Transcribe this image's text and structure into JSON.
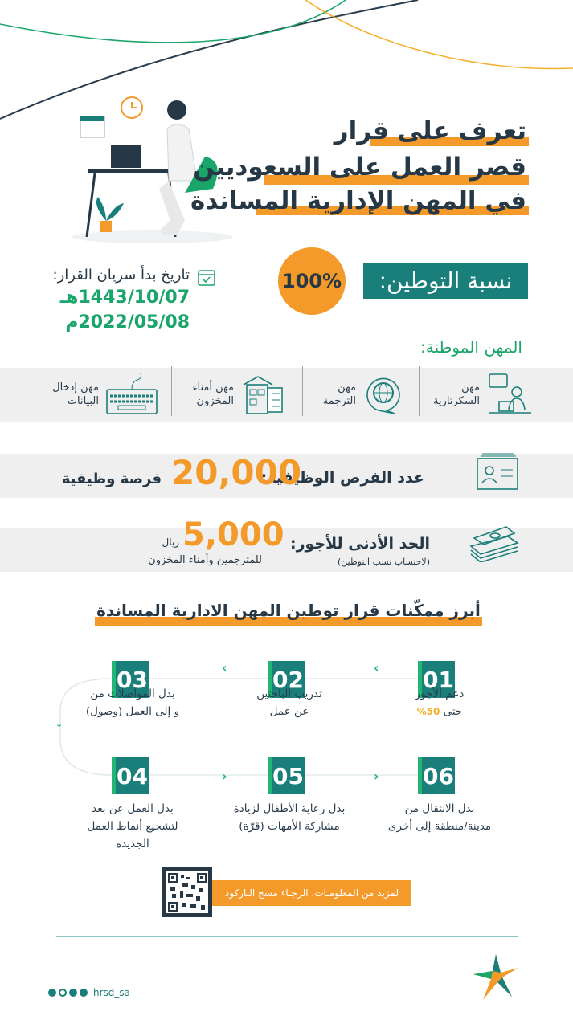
{
  "colors": {
    "teal": "#1a7f7a",
    "green": "#1aa56a",
    "orange": "#f39a2b",
    "navy": "#263746",
    "band": "#efefef"
  },
  "title": {
    "line1": "تعرف على قرار",
    "line2": "قصر العمل على السعوديين",
    "line3": "في المهن الإدارية المساندة"
  },
  "localization": {
    "label": "نسبة التوطين:",
    "value": "100%"
  },
  "effective_date": {
    "icon": "calendar-check-icon",
    "label": "تاريخ بدأ سريان القرار:",
    "hijri": "1443/10/07هـ",
    "gregorian": "2022/05/08م"
  },
  "occupations": {
    "heading": "المهن الموطنة:",
    "items": [
      {
        "icon": "secretary-icon",
        "label": "مهن\nالسكرتارية"
      },
      {
        "icon": "globe-chat-icon",
        "label": "مهن\nالترجمة"
      },
      {
        "icon": "warehouse-checklist-icon",
        "label": "مهن أمناء\nالمخزون"
      },
      {
        "icon": "keyboard-icon",
        "label": "مهن إدخال\nالبيانات"
      }
    ]
  },
  "jobs": {
    "icon": "id-card-icon",
    "label": "عدد الفرص الوظيفية:",
    "value": "20,000",
    "unit": "فرصة وظيفية"
  },
  "wage": {
    "icon": "money-stack-icon",
    "label": "الحد الأدنى للأجور:",
    "note": "(لاحتساب نسب التوطين)",
    "value": "5,000",
    "currency": "ريال",
    "applies_to": "للمترجمين وأمناء المخزون"
  },
  "enablers": {
    "heading": "أبرز ممكّنات قرار توطين المهن الادارية المساندة",
    "steps": [
      {
        "num": "01",
        "line1": "دعم الأجور",
        "line2": "حتى",
        "highlight": "50%"
      },
      {
        "num": "02",
        "line1": "تدريب الباحثين",
        "line2": "عن عمل"
      },
      {
        "num": "03",
        "line1": "بدل المواصلات من",
        "line2": "و إلى العمل (وصول)"
      },
      {
        "num": "04",
        "line1": "بدل العمل عن بعد",
        "line2": "لتشجيع أنماط العمل",
        "line3": "الجديدة"
      },
      {
        "num": "05",
        "line1": "بدل رعاية الأطفال لزيادة",
        "line2": "مشاركة الأمهات (قرّة)"
      },
      {
        "num": "06",
        "line1": "بدل الانتقال من",
        "line2": "مدينة/منطقة إلى أخرى"
      }
    ]
  },
  "qr": {
    "text": "لمزيد من المعلومـات، الرجـاء مسح الباركود"
  },
  "footer": {
    "handle": "hrsd_sa",
    "social": [
      "facebook-icon",
      "instagram-icon",
      "twitter-icon",
      "youtube-icon"
    ],
    "logo": "hrsd-logo"
  }
}
